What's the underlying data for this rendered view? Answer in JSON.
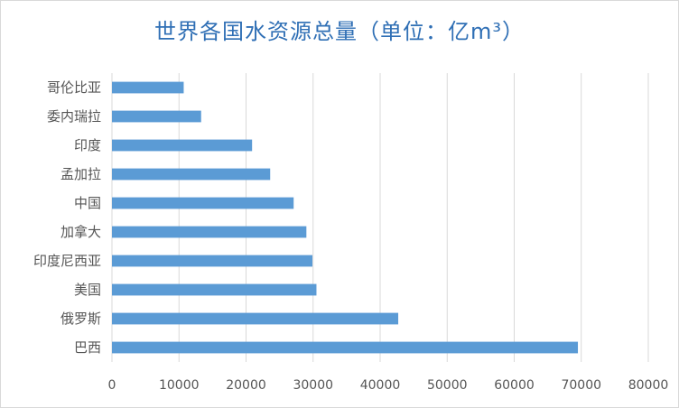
{
  "chart_data": {
    "type": "bar",
    "orientation": "horizontal",
    "title": "世界各国水资源总量（单位：亿m³）",
    "categories": [
      "巴西",
      "俄罗斯",
      "美国",
      "印度尼西亚",
      "加拿大",
      "中国",
      "孟加拉",
      "印度",
      "委内瑞拉",
      "哥伦比亚"
    ],
    "values": [
      69500,
      42700,
      30500,
      29900,
      29000,
      27100,
      23600,
      20900,
      13300,
      10700
    ],
    "xlim": [
      0,
      80000
    ],
    "x_ticks": [
      "0",
      "10000",
      "20000",
      "30000",
      "40000",
      "50000",
      "60000",
      "70000",
      "80000"
    ],
    "grid": true,
    "legend": "none",
    "bar_color": "#5b9bd5",
    "grid_color": "#d9d9d9"
  }
}
